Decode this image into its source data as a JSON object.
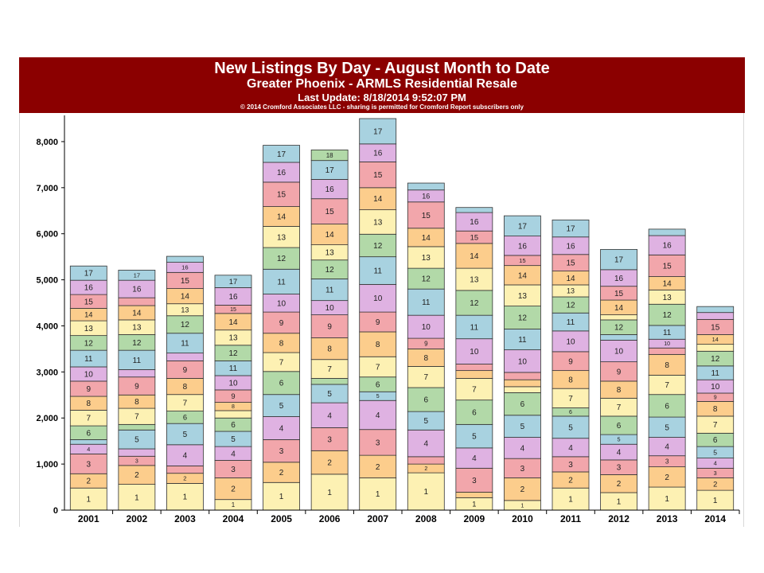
{
  "header": {
    "title": "New Listings By Day - August Month to Date",
    "subtitle": "Greater Phoenix - ARMLS Residential Resale",
    "update": "Last Update: 8/18/2014 9:52:07 PM",
    "copyright": "© 2014 Cromford Associates LLC - sharing is permitted for Cromford Report subscribers only"
  },
  "colors": {
    "header_bg": "#8b0000",
    "day_palette": [
      "#fdf1b3",
      "#fccd8c",
      "#f2a6ab",
      "#dfb2e2",
      "#a8d2e0",
      "#b2d9a8"
    ]
  },
  "chart_data": {
    "type": "bar",
    "stacked": true,
    "title": "",
    "xlabel": "",
    "ylabel": "",
    "ylim": [
      0,
      8500
    ],
    "yticks": [
      0,
      1000,
      2000,
      3000,
      4000,
      5000,
      6000,
      7000,
      8000
    ],
    "ytick_labels": [
      "0",
      "1,000",
      "2,000",
      "3,000",
      "4,000",
      "5,000",
      "6,000",
      "7,000",
      "8,000"
    ],
    "grid": false,
    "legend": "none",
    "categories": [
      "2001",
      "2002",
      "2003",
      "2004",
      "2005",
      "2006",
      "2007",
      "2008",
      "2009",
      "2010",
      "2011",
      "2012",
      "2013",
      "2014"
    ],
    "segment_labels": [
      "1",
      "2",
      "3",
      "4",
      "5",
      "6",
      "7",
      "8",
      "9",
      "10",
      "11",
      "12",
      "13",
      "14",
      "15",
      "16",
      "17",
      "18"
    ],
    "stacks": [
      [
        480,
        310,
        430,
        210,
        100,
        300,
        340,
        300,
        330,
        310,
        360,
        320,
        320,
        270,
        300,
        310,
        310,
        0
      ],
      [
        560,
        410,
        200,
        160,
        410,
        120,
        350,
        290,
        390,
        160,
        420,
        340,
        320,
        310,
        170,
        380,
        220,
        0
      ],
      [
        580,
        220,
        160,
        460,
        460,
        270,
        360,
        350,
        380,
        170,
        430,
        380,
        260,
        330,
        350,
        220,
        130,
        0
      ],
      [
        230,
        470,
        380,
        300,
        330,
        290,
        160,
        180,
        270,
        310,
        320,
        340,
        330,
        360,
        180,
        380,
        270,
        0
      ],
      [
        600,
        440,
        490,
        500,
        480,
        500,
        410,
        420,
        460,
        390,
        540,
        470,
        460,
        430,
        530,
        430,
        370,
        0
      ],
      [
        780,
        510,
        500,
        540,
        400,
        130,
        410,
        470,
        500,
        310,
        470,
        410,
        330,
        450,
        550,
        420,
        410,
        230
      ],
      [
        700,
        490,
        560,
        630,
        190,
        320,
        440,
        540,
        430,
        600,
        600,
        490,
        530,
        480,
        560,
        390,
        550,
        0
      ],
      [
        810,
        190,
        160,
        580,
        400,
        520,
        460,
        380,
        230,
        500,
        570,
        450,
        470,
        400,
        570,
        260,
        150,
        0
      ],
      [
        270,
        120,
        520,
        440,
        510,
        530,
        470,
        170,
        140,
        550,
        510,
        540,
        480,
        540,
        270,
        400,
        110,
        0
      ],
      [
        210,
        490,
        420,
        460,
        480,
        490,
        130,
        150,
        160,
        490,
        450,
        500,
        460,
        420,
        220,
        420,
        440,
        0
      ],
      [
        480,
        350,
        330,
        400,
        480,
        180,
        420,
        390,
        410,
        450,
        390,
        350,
        260,
        300,
        360,
        380,
        370,
        0
      ],
      [
        380,
        390,
        320,
        340,
        210,
        400,
        390,
        370,
        420,
        470,
        120,
        320,
        110,
        320,
        300,
        360,
        440,
        0
      ],
      [
        500,
        440,
        240,
        400,
        440,
        490,
        420,
        450,
        140,
        190,
        300,
        460,
        310,
        290,
        470,
        420,
        140,
        0
      ],
      [
        430,
        270,
        210,
        220,
        250,
        290,
        370,
        320,
        180,
        290,
        300,
        320,
        150,
        210,
        330,
        150,
        130,
        0
      ]
    ]
  }
}
